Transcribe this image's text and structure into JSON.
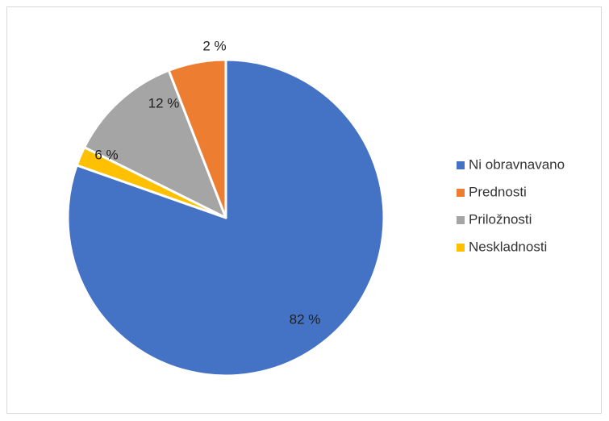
{
  "chart_data": {
    "type": "pie",
    "title": "",
    "slices": [
      {
        "name": "Ni obravnavano",
        "value": 82,
        "label": "82 %",
        "color": "#4472C4"
      },
      {
        "name": "Neskladnosti",
        "value": 2,
        "label": "2 %",
        "color": "#FFC000"
      },
      {
        "name": "Priložnosti",
        "value": 12,
        "label": "12 %",
        "color": "#A5A5A5"
      },
      {
        "name": "Prednosti",
        "value": 6,
        "label": "6 %",
        "color": "#ED7D31"
      }
    ],
    "legend": {
      "position": "right",
      "entries": [
        "Ni obravnavano",
        "Prednosti",
        "Priložnosti",
        "Neskladnosti"
      ]
    }
  }
}
